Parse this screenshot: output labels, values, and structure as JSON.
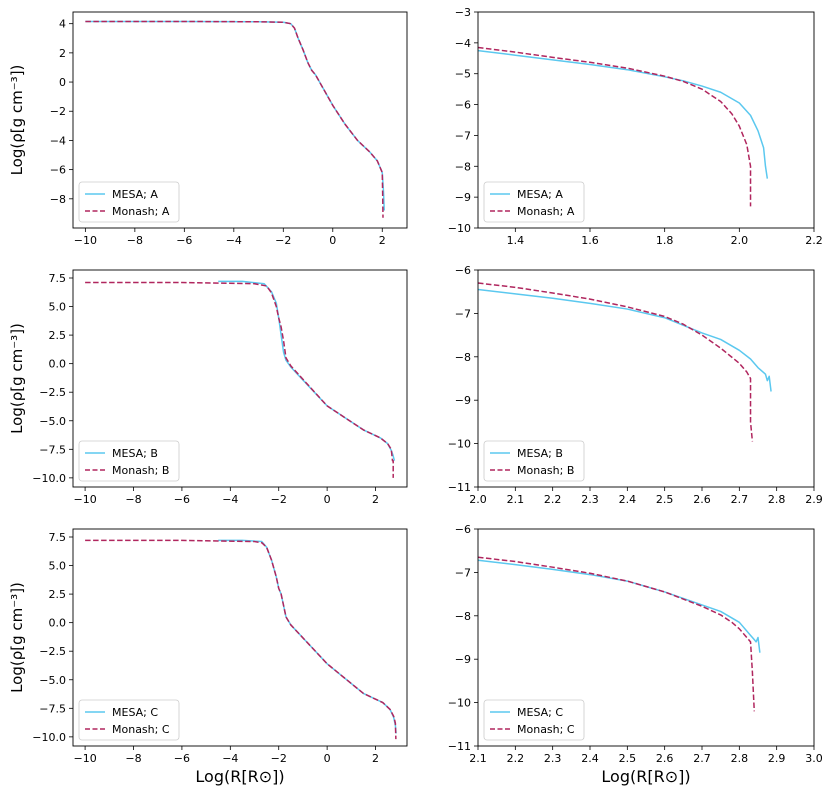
{
  "colors": {
    "mesa": "#5bc8ef",
    "monash": "#b0265e"
  },
  "ylabel": "Log(ρ[g cm⁻³])",
  "xlabel": "Log(R[R⊙])",
  "chart_data": [
    {
      "type": "line",
      "position": "row A left",
      "xlim": [
        -10.5,
        3.0
      ],
      "ylim": [
        -10.0,
        4.8
      ],
      "xticks": [
        -10,
        -8,
        -6,
        -4,
        -2,
        0,
        2
      ],
      "yticks": [
        -8,
        -6,
        -4,
        -2,
        0,
        2,
        4
      ],
      "tick_labels_x": [
        "−10",
        "−8",
        "−6",
        "−4",
        "−2",
        "0",
        "2"
      ],
      "tick_labels_y": [
        "−8",
        "−6",
        "−4",
        "−2",
        "0",
        "2",
        "4"
      ],
      "ylabel_shown": true,
      "xlabel_shown": false,
      "legend": [
        "MESA; A",
        "Monash; A"
      ],
      "series": [
        {
          "name": "MESA; A",
          "style": "solid",
          "x": [
            -10,
            -6,
            -3,
            -2.0,
            -1.7,
            -1.55,
            -1.4,
            -1.2,
            -1.0,
            -0.85,
            -0.7,
            0,
            0.5,
            1.0,
            1.5,
            1.8,
            2.0,
            2.05,
            2.08
          ],
          "y": [
            4.15,
            4.15,
            4.13,
            4.1,
            4.0,
            3.7,
            3.0,
            2.2,
            1.3,
            0.8,
            0.5,
            -1.6,
            -2.9,
            -4.0,
            -4.8,
            -5.4,
            -6.2,
            -7.5,
            -8.8
          ]
        },
        {
          "name": "Monash; A",
          "style": "dashed",
          "x": [
            -10,
            -6,
            -3,
            -2.0,
            -1.7,
            -1.55,
            -1.4,
            -1.2,
            -1.0,
            -0.85,
            -0.7,
            0,
            0.5,
            1.0,
            1.5,
            1.8,
            2.0,
            2.02,
            2.03
          ],
          "y": [
            4.15,
            4.15,
            4.13,
            4.1,
            4.0,
            3.7,
            3.0,
            2.2,
            1.3,
            0.8,
            0.5,
            -1.6,
            -2.9,
            -4.0,
            -4.8,
            -5.4,
            -6.2,
            -8.0,
            -9.3
          ]
        }
      ]
    },
    {
      "type": "line",
      "position": "row A right",
      "xlim": [
        1.3,
        2.2
      ],
      "ylim": [
        -10,
        -3
      ],
      "xticks": [
        1.4,
        1.6,
        1.8,
        2.0,
        2.2
      ],
      "yticks": [
        -10,
        -9,
        -8,
        -7,
        -6,
        -5,
        -4,
        -3
      ],
      "tick_labels_x": [
        "1.4",
        "1.6",
        "1.8",
        "2.0",
        "2.2"
      ],
      "tick_labels_y": [
        "−10",
        "−9",
        "−8",
        "−7",
        "−6",
        "−5",
        "−4",
        "−3"
      ],
      "ylabel_shown": false,
      "xlabel_shown": false,
      "legend": [
        "MESA; A",
        "Monash; A"
      ],
      "series": [
        {
          "name": "MESA; A",
          "style": "solid",
          "x": [
            1.3,
            1.4,
            1.5,
            1.6,
            1.7,
            1.8,
            1.85,
            1.9,
            1.95,
            2.0,
            2.03,
            2.05,
            2.065,
            2.07,
            2.075
          ],
          "y": [
            -4.25,
            -4.4,
            -4.55,
            -4.7,
            -4.87,
            -5.1,
            -5.23,
            -5.4,
            -5.6,
            -5.95,
            -6.35,
            -6.85,
            -7.4,
            -8.0,
            -8.4
          ]
        },
        {
          "name": "Monash; A",
          "style": "dashed",
          "x": [
            1.3,
            1.4,
            1.5,
            1.6,
            1.7,
            1.8,
            1.85,
            1.9,
            1.95,
            1.98,
            2.0,
            2.02,
            2.03,
            2.03
          ],
          "y": [
            -4.15,
            -4.3,
            -4.47,
            -4.63,
            -4.82,
            -5.08,
            -5.25,
            -5.5,
            -5.9,
            -6.3,
            -6.7,
            -7.3,
            -8.0,
            -9.3
          ]
        }
      ]
    },
    {
      "type": "line",
      "position": "row B left",
      "xlim": [
        -10.5,
        3.3
      ],
      "ylim": [
        -10.8,
        8.2
      ],
      "xticks": [
        -10,
        -8,
        -6,
        -4,
        -2,
        0,
        2
      ],
      "yticks": [
        -10.0,
        -7.5,
        -5.0,
        -2.5,
        0.0,
        2.5,
        5.0,
        7.5
      ],
      "tick_labels_x": [
        "−10",
        "−8",
        "−6",
        "−4",
        "−2",
        "0",
        "2"
      ],
      "tick_labels_y": [
        "−10.0",
        "−7.5",
        "−5.0",
        "−2.5",
        "0.0",
        "2.5",
        "5.0",
        "7.5"
      ],
      "ylabel_shown": true,
      "xlabel_shown": false,
      "legend": [
        "MESA; B",
        "Monash; B"
      ],
      "series": [
        {
          "name": "MESA; B",
          "style": "solid",
          "x": [
            -4.5,
            -3.5,
            -2.6,
            -2.3,
            -2.1,
            -2.0,
            -1.9,
            -1.8,
            -1.7,
            -1.5,
            0,
            1.5,
            2.2,
            2.5,
            2.65,
            2.72,
            2.78
          ],
          "y": [
            7.2,
            7.2,
            7.0,
            6.3,
            5.3,
            4.0,
            2.5,
            1.0,
            0.3,
            -0.3,
            -3.7,
            -5.8,
            -6.5,
            -7.0,
            -7.6,
            -8.0,
            -8.5
          ]
        },
        {
          "name": "Monash; B",
          "style": "dashed",
          "x": [
            -10,
            -6,
            -3,
            -2.5,
            -2.3,
            -2.1,
            -2.0,
            -1.9,
            -1.8,
            -1.7,
            -1.5,
            0,
            1.5,
            2.2,
            2.5,
            2.65,
            2.7,
            2.73,
            2.73
          ],
          "y": [
            7.1,
            7.1,
            7.0,
            6.8,
            6.2,
            5.0,
            4.0,
            3.2,
            2.0,
            0.5,
            -0.2,
            -3.7,
            -5.8,
            -6.5,
            -7.0,
            -7.5,
            -8.5,
            -8.5,
            -10.0
          ]
        }
      ]
    },
    {
      "type": "line",
      "position": "row B right",
      "xlim": [
        2.0,
        2.9
      ],
      "ylim": [
        -11,
        -6
      ],
      "xticks": [
        2.0,
        2.1,
        2.2,
        2.3,
        2.4,
        2.5,
        2.6,
        2.7,
        2.8,
        2.9
      ],
      "yticks": [
        -11,
        -10,
        -9,
        -8,
        -7,
        -6
      ],
      "tick_labels_x": [
        "2.0",
        "2.1",
        "2.2",
        "2.3",
        "2.4",
        "2.5",
        "2.6",
        "2.7",
        "2.8",
        "2.9"
      ],
      "tick_labels_y": [
        "−11",
        "−10",
        "−9",
        "−8",
        "−7",
        "−6"
      ],
      "ylabel_shown": false,
      "xlabel_shown": false,
      "legend": [
        "MESA; B",
        "Monash; B"
      ],
      "series": [
        {
          "name": "MESA; B",
          "style": "solid",
          "x": [
            2.0,
            2.1,
            2.2,
            2.3,
            2.4,
            2.5,
            2.6,
            2.65,
            2.7,
            2.73,
            2.75,
            2.77,
            2.775,
            2.78,
            2.785
          ],
          "y": [
            -6.45,
            -6.55,
            -6.65,
            -6.77,
            -6.9,
            -7.1,
            -7.45,
            -7.6,
            -7.85,
            -8.05,
            -8.25,
            -8.4,
            -8.55,
            -8.45,
            -8.8
          ]
        },
        {
          "name": "Monash; B",
          "style": "dashed",
          "x": [
            2.0,
            2.1,
            2.2,
            2.3,
            2.4,
            2.5,
            2.55,
            2.6,
            2.65,
            2.7,
            2.72,
            2.73,
            2.73,
            2.735
          ],
          "y": [
            -6.3,
            -6.4,
            -6.53,
            -6.67,
            -6.85,
            -7.07,
            -7.25,
            -7.5,
            -7.8,
            -8.15,
            -8.35,
            -8.5,
            -9.5,
            -9.95
          ]
        }
      ]
    },
    {
      "type": "line",
      "position": "row C left",
      "xlim": [
        -10.5,
        3.3
      ],
      "ylim": [
        -10.8,
        8.2
      ],
      "xticks": [
        -10,
        -8,
        -6,
        -4,
        -2,
        0,
        2
      ],
      "yticks": [
        -10.0,
        -7.5,
        -5.0,
        -2.5,
        0.0,
        2.5,
        5.0,
        7.5
      ],
      "tick_labels_x": [
        "−10",
        "−8",
        "−6",
        "−4",
        "−2",
        "0",
        "2"
      ],
      "tick_labels_y": [
        "−10.0",
        "−7.5",
        "−5.0",
        "−2.5",
        "0.0",
        "2.5",
        "5.0",
        "7.5"
      ],
      "ylabel_shown": true,
      "xlabel_shown": true,
      "legend": [
        "MESA; C",
        "Monash; C"
      ],
      "series": [
        {
          "name": "MESA; C",
          "style": "solid",
          "x": [
            -4.5,
            -3.5,
            -2.7,
            -2.5,
            -2.3,
            -2.1,
            -2.0,
            -1.9,
            -1.8,
            -1.7,
            -1.5,
            0,
            1.5,
            2.3,
            2.6,
            2.75,
            2.82,
            2.85
          ],
          "y": [
            7.2,
            7.2,
            7.1,
            6.6,
            5.5,
            4.0,
            3.0,
            2.5,
            1.5,
            0.5,
            -0.2,
            -3.6,
            -6.2,
            -7.0,
            -7.6,
            -8.3,
            -9.0,
            -9.7
          ]
        },
        {
          "name": "Monash; C",
          "style": "dashed",
          "x": [
            -10,
            -6,
            -3,
            -2.7,
            -2.5,
            -2.3,
            -2.1,
            -2.0,
            -1.9,
            -1.8,
            -1.7,
            -1.5,
            0,
            1.5,
            2.3,
            2.6,
            2.75,
            2.82,
            2.83,
            2.84
          ],
          "y": [
            7.2,
            7.2,
            7.1,
            7.0,
            6.6,
            5.5,
            4.0,
            3.0,
            2.5,
            1.5,
            0.5,
            -0.2,
            -3.6,
            -6.2,
            -7.0,
            -7.6,
            -8.2,
            -8.8,
            -9.5,
            -10.2
          ]
        }
      ]
    },
    {
      "type": "line",
      "position": "row C right",
      "xlim": [
        2.1,
        3.0
      ],
      "ylim": [
        -11,
        -6
      ],
      "xticks": [
        2.1,
        2.2,
        2.3,
        2.4,
        2.5,
        2.6,
        2.7,
        2.8,
        2.9,
        3.0
      ],
      "yticks": [
        -11,
        -10,
        -9,
        -8,
        -7,
        -6
      ],
      "tick_labels_x": [
        "2.1",
        "2.2",
        "2.3",
        "2.4",
        "2.5",
        "2.6",
        "2.7",
        "2.8",
        "2.9",
        "3.0"
      ],
      "tick_labels_y": [
        "−11",
        "−10",
        "−9",
        "−8",
        "−7",
        "−6"
      ],
      "ylabel_shown": false,
      "xlabel_shown": true,
      "legend": [
        "MESA; C",
        "Monash; C"
      ],
      "series": [
        {
          "name": "MESA; C",
          "style": "solid",
          "x": [
            2.1,
            2.2,
            2.3,
            2.4,
            2.5,
            2.6,
            2.7,
            2.75,
            2.8,
            2.83,
            2.84,
            2.845,
            2.85,
            2.855
          ],
          "y": [
            -6.72,
            -6.82,
            -6.93,
            -7.05,
            -7.2,
            -7.45,
            -7.75,
            -7.9,
            -8.15,
            -8.45,
            -8.55,
            -8.6,
            -8.5,
            -8.85
          ]
        },
        {
          "name": "Monash; C",
          "style": "dashed",
          "x": [
            2.1,
            2.2,
            2.3,
            2.4,
            2.5,
            2.6,
            2.7,
            2.75,
            2.78,
            2.8,
            2.82,
            2.83,
            2.835,
            2.84
          ],
          "y": [
            -6.65,
            -6.75,
            -6.88,
            -7.02,
            -7.2,
            -7.45,
            -7.78,
            -7.98,
            -8.15,
            -8.3,
            -8.5,
            -8.6,
            -9.3,
            -10.2
          ]
        }
      ]
    }
  ]
}
